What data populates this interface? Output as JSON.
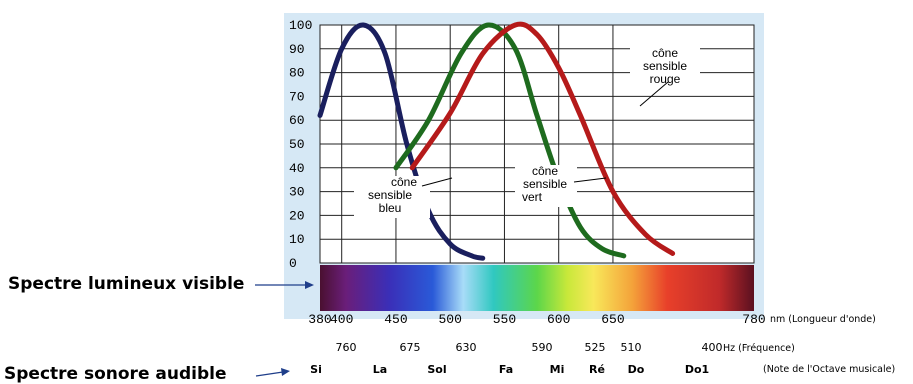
{
  "chart_data": {
    "type": "line",
    "title": "",
    "xlabel": "",
    "ylabel": "",
    "x_axis_range": [
      380,
      780
    ],
    "ylim": [
      0,
      100
    ],
    "y_ticks": [
      "100",
      "90",
      "80",
      "70",
      "60",
      "50",
      "40",
      "30",
      "20",
      "10",
      "0"
    ],
    "x_ticks": [
      {
        "value": 380,
        "label": "380"
      },
      {
        "value": 400,
        "label": "400"
      },
      {
        "value": 450,
        "label": "450"
      },
      {
        "value": 500,
        "label": "500"
      },
      {
        "value": 550,
        "label": "550"
      },
      {
        "value": 600,
        "label": "600"
      },
      {
        "value": 650,
        "label": "650"
      },
      {
        "value": 780,
        "label": "780"
      }
    ],
    "x_unit_note": "nm (Longueur d'onde)",
    "grid": true,
    "background": "#d6e8f5",
    "series": [
      {
        "key": "blue",
        "color": "#1a1f5e",
        "x": [
          380,
          400,
          420,
          440,
          460,
          480,
          500,
          520,
          530
        ],
        "y": [
          62,
          90,
          100,
          88,
          50,
          22,
          8,
          3,
          2
        ]
      },
      {
        "key": "green",
        "color": "#1e6b1e",
        "x": [
          450,
          480,
          510,
          535,
          560,
          580,
          600,
          620,
          640,
          660
        ],
        "y": [
          40,
          60,
          88,
          100,
          90,
          62,
          35,
          15,
          6,
          3
        ]
      },
      {
        "key": "red",
        "color": "#b51a1a",
        "x": [
          465,
          500,
          530,
          560,
          580,
          600,
          620,
          650,
          680,
          705
        ],
        "y": [
          40,
          63,
          88,
          100,
          96,
          82,
          62,
          30,
          12,
          4
        ]
      }
    ],
    "annotations": {
      "rouge": [
        "cône",
        "sensible",
        "rouge"
      ],
      "vert": [
        "cône",
        "sensible",
        "vert"
      ],
      "bleu": [
        "cône",
        "sensible",
        "bleu"
      ]
    },
    "frequency_row": {
      "values": [
        "760",
        "675",
        "630",
        "590",
        "525",
        "510",
        "400"
      ],
      "unit_note": "Hz (Fréquence)"
    },
    "notes_row": {
      "notes": [
        {
          "label": "Si",
          "color": "#5b2a9a"
        },
        {
          "label": "La",
          "color": "#2b4aa8"
        },
        {
          "label": "Sol",
          "color": "#3b86c8"
        },
        {
          "label": "Fa",
          "color": "#1e8a2e"
        },
        {
          "label": "Mi",
          "color": "#e8cf1a"
        },
        {
          "label": "Ré",
          "color": "#f0a020"
        },
        {
          "label": "Do",
          "color": "#e02020"
        },
        {
          "label": "Do1",
          "color": "#c81818"
        }
      ],
      "unit_note": "(Note de l'Octave musicale)"
    }
  },
  "labels": {
    "visible": "Spectre lumineux visible",
    "audible": "Spectre sonore audible"
  }
}
